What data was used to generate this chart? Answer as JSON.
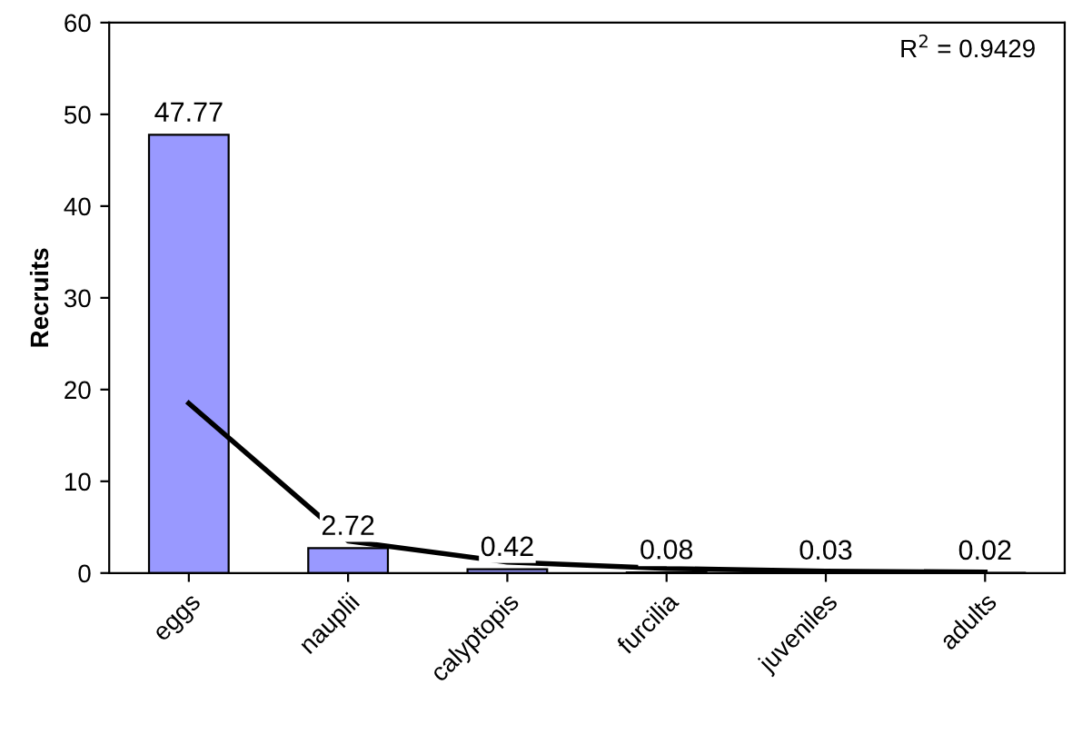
{
  "chart_data": {
    "type": "bar",
    "ylabel": "Recruits",
    "categories": [
      "eggs",
      "nauplii",
      "calyptopis",
      "furcilia",
      "juveniles",
      "adults"
    ],
    "series": [
      {
        "color": "#9999ff",
        "values": [
          47.77,
          2.72,
          0.42,
          0.08,
          0.03,
          0.02
        ],
        "data_labels": true
      },
      {
        "type": "line",
        "color": "#000000",
        "values": [
          18.5,
          3.5,
          1.2,
          0.5,
          0.2,
          0.1
        ]
      }
    ],
    "ylim": [
      0,
      60
    ],
    "yticks": [
      0,
      10,
      20,
      30,
      40,
      50,
      60
    ],
    "grid": false,
    "legend": false,
    "annotations": [
      "R$^{2}$ = 0.9429"
    ]
  }
}
